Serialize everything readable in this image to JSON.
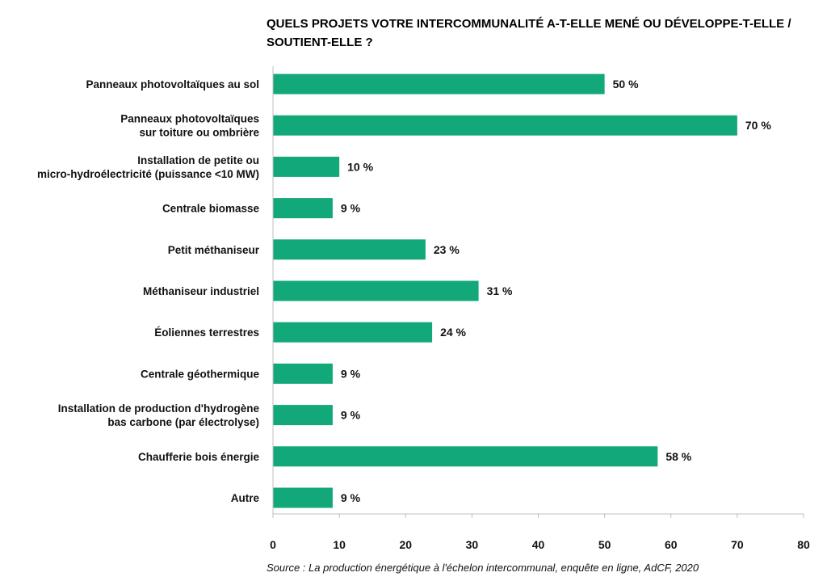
{
  "chart_data": {
    "type": "bar",
    "orientation": "horizontal",
    "title": "QUELS PROJETS VOTRE INTERCOMMUNALITÉ A-T-ELLE MENÉ OU DÉVELOPPE-T-ELLE / SOUTIENT-ELLE ?",
    "categories": [
      [
        "Panneaux photovoltaïques au sol"
      ],
      [
        "Panneaux photovoltaïques",
        "sur toiture ou ombrière"
      ],
      [
        "Installation de petite ou",
        "micro-hydroélectricité (puissance <10 MW)"
      ],
      [
        "Centrale biomasse"
      ],
      [
        "Petit méthaniseur"
      ],
      [
        "Méthaniseur industriel"
      ],
      [
        "Éoliennes terrestres"
      ],
      [
        "Centrale géothermique"
      ],
      [
        "Installation de production d'hydrogène",
        "bas carbone (par électrolyse)"
      ],
      [
        "Chaufferie bois énergie"
      ],
      [
        "Autre"
      ]
    ],
    "values": [
      50,
      70,
      10,
      9,
      23,
      31,
      24,
      9,
      9,
      58,
      9
    ],
    "value_labels": [
      "50 %",
      "70 %",
      "10 %",
      "9 %",
      "23 %",
      "31 %",
      "24 %",
      "9 %",
      "9 %",
      "58 %",
      "9 %"
    ],
    "xlim": [
      0,
      80
    ],
    "xticks": [
      "0",
      "10",
      "20",
      "30",
      "40",
      "50",
      "60",
      "70",
      "80"
    ],
    "grid": false,
    "bar_color": "#12a879",
    "source": "Source : La production énergétique à l'échelon intercommunal, enquête en ligne, AdCF, 2020"
  }
}
